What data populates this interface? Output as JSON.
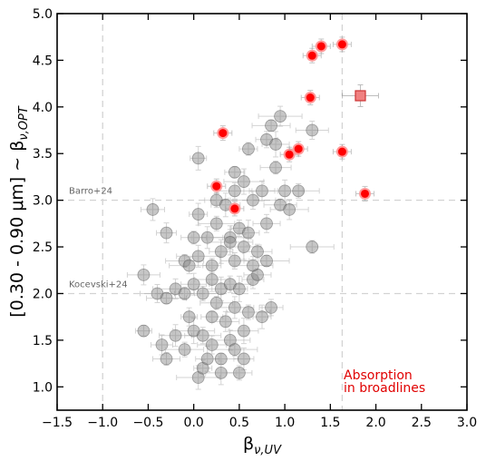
{
  "chart_data": {
    "type": "scatter",
    "xlabel": "β_{ν,UV}",
    "ylabel": "[0.30 - 0.90 μm] ~ β_{ν,OPT}",
    "xlim": [
      -1.5,
      3.0
    ],
    "ylim": [
      0.75,
      5.0
    ],
    "xticks": [
      -1.5,
      -1.0,
      -0.5,
      0.0,
      0.5,
      1.0,
      1.5,
      2.0,
      2.5,
      3.0
    ],
    "yticks": [
      1.0,
      1.5,
      2.0,
      2.5,
      3.0,
      3.5,
      4.0,
      4.5,
      5.0
    ],
    "xtick_labels": [
      "−1.5",
      "−1.0",
      "−0.5",
      "0.0",
      "0.5",
      "1.0",
      "1.5",
      "2.0",
      "2.5",
      "3.0"
    ],
    "ytick_labels": [
      "1.0",
      "1.5",
      "2.0",
      "2.5",
      "3.0",
      "3.5",
      "4.0",
      "4.5",
      "5.0"
    ],
    "grid": false,
    "reference_lines": [
      {
        "orientation": "horizontal",
        "value": 3.0,
        "label": "Barro+24"
      },
      {
        "orientation": "horizontal",
        "value": 2.0,
        "label": "Kocevski+24"
      },
      {
        "orientation": "vertical",
        "value": -1.0,
        "label": ""
      },
      {
        "orientation": "vertical",
        "value": 1.63,
        "label": ""
      }
    ],
    "annotation": {
      "lines": [
        "Absorption",
        "in broadlines"
      ],
      "color": "#e00000"
    },
    "series": [
      {
        "style": "gray-circles",
        "color": "#808080",
        "points": [
          [
            -0.55,
            1.6
          ],
          [
            -0.35,
            1.45
          ],
          [
            -0.3,
            1.3
          ],
          [
            -0.2,
            1.55
          ],
          [
            -0.1,
            1.4
          ],
          [
            0.05,
            1.1
          ],
          [
            0.1,
            1.2
          ],
          [
            0.15,
            1.3
          ],
          [
            0.2,
            1.45
          ],
          [
            0.3,
            1.3
          ],
          [
            0.4,
            1.5
          ],
          [
            0.45,
            1.4
          ],
          [
            0.55,
            1.3
          ],
          [
            0.5,
            1.15
          ],
          [
            0.3,
            1.15
          ],
          [
            0.1,
            1.55
          ],
          [
            0.0,
            1.6
          ],
          [
            -0.05,
            1.75
          ],
          [
            0.2,
            1.75
          ],
          [
            0.35,
            1.7
          ],
          [
            0.25,
            1.9
          ],
          [
            0.45,
            1.85
          ],
          [
            0.6,
            1.8
          ],
          [
            0.75,
            1.75
          ],
          [
            0.85,
            1.85
          ],
          [
            0.55,
            1.6
          ],
          [
            -0.4,
            2.0
          ],
          [
            -0.3,
            1.95
          ],
          [
            -0.2,
            2.05
          ],
          [
            -0.1,
            2.0
          ],
          [
            0.0,
            2.1
          ],
          [
            0.1,
            2.0
          ],
          [
            0.3,
            2.05
          ],
          [
            0.4,
            2.1
          ],
          [
            0.5,
            2.05
          ],
          [
            0.65,
            2.15
          ],
          [
            0.7,
            2.2
          ],
          [
            -0.55,
            2.2
          ],
          [
            -0.1,
            2.35
          ],
          [
            0.05,
            2.4
          ],
          [
            0.2,
            2.3
          ],
          [
            0.3,
            2.45
          ],
          [
            0.45,
            2.35
          ],
          [
            0.55,
            2.5
          ],
          [
            0.65,
            2.3
          ],
          [
            0.8,
            2.35
          ],
          [
            -0.3,
            2.65
          ],
          [
            0.0,
            2.6
          ],
          [
            0.15,
            2.6
          ],
          [
            0.25,
            2.75
          ],
          [
            0.4,
            2.6
          ],
          [
            0.5,
            2.7
          ],
          [
            0.6,
            2.65
          ],
          [
            0.8,
            2.75
          ],
          [
            0.95,
            2.95
          ],
          [
            1.05,
            2.9
          ],
          [
            1.3,
            2.5
          ],
          [
            0.05,
            2.85
          ],
          [
            0.25,
            3.0
          ],
          [
            0.35,
            2.95
          ],
          [
            0.45,
            3.1
          ],
          [
            0.55,
            3.2
          ],
          [
            0.65,
            3.0
          ],
          [
            0.45,
            3.3
          ],
          [
            0.75,
            3.1
          ],
          [
            0.9,
            3.35
          ],
          [
            1.0,
            3.1
          ],
          [
            1.15,
            3.1
          ],
          [
            0.05,
            3.45
          ],
          [
            0.8,
            3.65
          ],
          [
            0.9,
            3.6
          ],
          [
            1.3,
            3.75
          ],
          [
            0.85,
            3.8
          ],
          [
            0.95,
            3.9
          ],
          [
            0.6,
            3.55
          ],
          [
            -0.45,
            2.9
          ],
          [
            0.7,
            2.45
          ],
          [
            0.2,
            2.15
          ],
          [
            -0.05,
            2.3
          ],
          [
            0.4,
            2.55
          ]
        ]
      },
      {
        "style": "red-circles",
        "color": "#ff0000",
        "points": [
          [
            1.63,
            4.67
          ],
          [
            1.4,
            4.65
          ],
          [
            1.3,
            4.55
          ],
          [
            1.28,
            4.1
          ],
          [
            0.32,
            3.72
          ],
          [
            1.05,
            3.49
          ],
          [
            1.15,
            3.55
          ],
          [
            1.63,
            3.52
          ],
          [
            0.25,
            3.15
          ],
          [
            0.45,
            2.91
          ],
          [
            1.88,
            3.07
          ]
        ]
      },
      {
        "style": "red-square",
        "color": "#f08080",
        "points": [
          [
            1.83,
            4.12
          ]
        ]
      }
    ]
  }
}
